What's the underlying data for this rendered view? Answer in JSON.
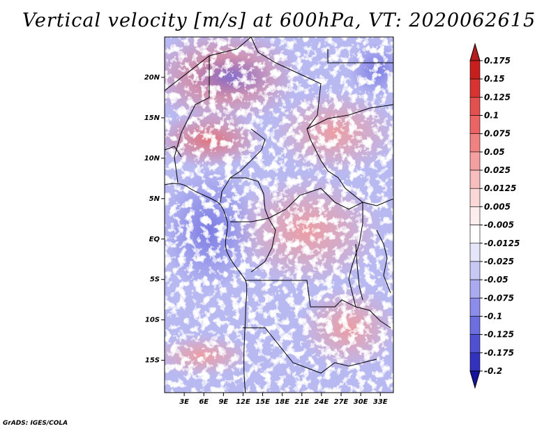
{
  "title": "Vertical velocity [m/s] at 600hPa, VT: 2020062615",
  "credit": "GrADS: IGES/COLA",
  "map": {
    "lat_range": [
      -19,
      25
    ],
    "lon_range": [
      0,
      35
    ],
    "lat_ticks": [
      {
        "value": 20,
        "label": "20N"
      },
      {
        "value": 15,
        "label": "15N"
      },
      {
        "value": 10,
        "label": "10N"
      },
      {
        "value": 5,
        "label": "5N"
      },
      {
        "value": 0,
        "label": "EQ"
      },
      {
        "value": -5,
        "label": "5S"
      },
      {
        "value": -10,
        "label": "10S"
      },
      {
        "value": -15,
        "label": "15S"
      }
    ],
    "lon_ticks": [
      {
        "value": 3,
        "label": "3E"
      },
      {
        "value": 6,
        "label": "6E"
      },
      {
        "value": 9,
        "label": "9E"
      },
      {
        "value": 12,
        "label": "12E"
      },
      {
        "value": 15,
        "label": "15E"
      },
      {
        "value": 18,
        "label": "18E"
      },
      {
        "value": 21,
        "label": "21E"
      },
      {
        "value": 24,
        "label": "24E"
      },
      {
        "value": 27,
        "label": "27E"
      },
      {
        "value": 30,
        "label": "30E"
      },
      {
        "value": 33,
        "label": "33E"
      }
    ]
  },
  "colorbar": {
    "levels": [
      {
        "label": "0.175",
        "color": "#c81e1e"
      },
      {
        "label": "0.15",
        "color": "#d83232"
      },
      {
        "label": "0.125",
        "color": "#e45050"
      },
      {
        "label": "0.1",
        "color": "#ec6464"
      },
      {
        "label": "0.075",
        "color": "#f08282"
      },
      {
        "label": "0.05",
        "color": "#f4a0a0"
      },
      {
        "label": "0.025",
        "color": "#f8bebe"
      },
      {
        "label": "0.0125",
        "color": "#fad8d8"
      },
      {
        "label": "0.005",
        "color": "#fdeded"
      },
      {
        "label": "-0.005",
        "color": "#ffffff"
      },
      {
        "label": "-0.0125",
        "color": "#e6e6fa"
      },
      {
        "label": "-0.025",
        "color": "#c8c8f5"
      },
      {
        "label": "-0.05",
        "color": "#aaaaf0"
      },
      {
        "label": "-0.075",
        "color": "#8c8ceb"
      },
      {
        "label": "-0.1",
        "color": "#6e6ee1"
      },
      {
        "label": "-0.125",
        "color": "#5050d2"
      },
      {
        "label": "-0.175",
        "color": "#3232be"
      },
      {
        "label": "-0.2",
        "color": "#1e1eaa"
      }
    ],
    "top_color": "#b41e1e",
    "bottom_color": "#1414a0"
  }
}
